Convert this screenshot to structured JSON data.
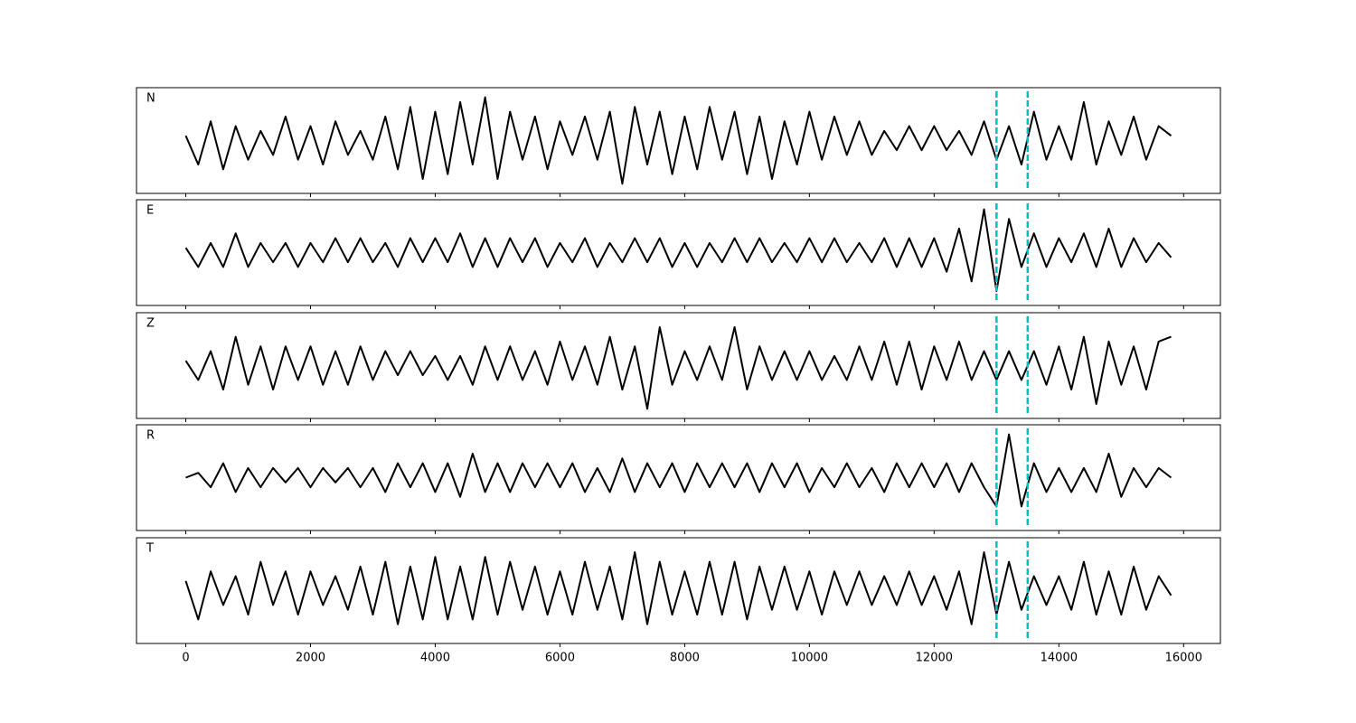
{
  "chart_data": [
    {
      "type": "line",
      "title": "N",
      "color": "#000000",
      "vline_color": "#00bfbf",
      "vlines": [
        13000,
        13500
      ],
      "xlim": [
        -790,
        16590
      ],
      "ylim": [
        -1.1,
        1.1
      ],
      "x": [
        0,
        200,
        400,
        600,
        800,
        1000,
        1200,
        1400,
        1600,
        1800,
        2000,
        2200,
        2400,
        2600,
        2800,
        3000,
        3200,
        3400,
        3600,
        3800,
        4000,
        4200,
        4400,
        4600,
        4800,
        5000,
        5200,
        5400,
        5600,
        5800,
        6000,
        6200,
        6400,
        6600,
        6800,
        7000,
        7200,
        7400,
        7600,
        7800,
        8000,
        8200,
        8400,
        8600,
        8800,
        9000,
        9200,
        9400,
        9600,
        9800,
        10000,
        10200,
        10400,
        10600,
        10800,
        11000,
        11200,
        11400,
        11600,
        11800,
        12000,
        12200,
        12400,
        12600,
        12800,
        13000,
        13200,
        13400,
        13600,
        13800,
        14000,
        14200,
        14400,
        14600,
        14800,
        15000,
        15200,
        15400,
        15600,
        15800
      ],
      "values": [
        0.1,
        -0.5,
        0.4,
        -0.6,
        0.3,
        -0.4,
        0.2,
        -0.3,
        0.5,
        -0.4,
        0.3,
        -0.5,
        0.4,
        -0.3,
        0.2,
        -0.4,
        0.5,
        -0.6,
        0.7,
        -0.8,
        0.6,
        -0.7,
        0.8,
        -0.5,
        0.9,
        -0.8,
        0.6,
        -0.4,
        0.5,
        -0.6,
        0.4,
        -0.3,
        0.5,
        -0.4,
        0.6,
        -0.9,
        0.7,
        -0.5,
        0.6,
        -0.7,
        0.5,
        -0.6,
        0.7,
        -0.4,
        0.6,
        -0.7,
        0.5,
        -0.8,
        0.4,
        -0.5,
        0.6,
        -0.4,
        0.5,
        -0.3,
        0.4,
        -0.3,
        0.2,
        -0.2,
        0.3,
        -0.2,
        0.3,
        -0.2,
        0.2,
        -0.3,
        0.4,
        -0.4,
        0.3,
        -0.5,
        0.6,
        -0.4,
        0.3,
        -0.4,
        0.8,
        -0.5,
        0.4,
        -0.3,
        0.5,
        -0.4,
        0.3,
        0.1
      ]
    },
    {
      "type": "line",
      "title": "E",
      "color": "#000000",
      "vline_color": "#00bfbf",
      "vlines": [
        13000,
        13500
      ],
      "xlim": [
        -790,
        16590
      ],
      "ylim": [
        -1.1,
        1.1
      ],
      "x": [
        0,
        200,
        400,
        600,
        800,
        1000,
        1200,
        1400,
        1600,
        1800,
        2000,
        2200,
        2400,
        2600,
        2800,
        3000,
        3200,
        3400,
        3600,
        3800,
        4000,
        4200,
        4400,
        4600,
        4800,
        5000,
        5200,
        5400,
        5600,
        5800,
        6000,
        6200,
        6400,
        6600,
        6800,
        7000,
        7200,
        7400,
        7600,
        7800,
        8000,
        8200,
        8400,
        8600,
        8800,
        9000,
        9200,
        9400,
        9600,
        9800,
        10000,
        10200,
        10400,
        10600,
        10800,
        11000,
        11200,
        11400,
        11600,
        11800,
        12000,
        12200,
        12400,
        12600,
        12800,
        13000,
        13200,
        13400,
        13600,
        13800,
        14000,
        14200,
        14400,
        14600,
        14800,
        15000,
        15200,
        15400,
        15600,
        15800
      ],
      "values": [
        0.1,
        -0.3,
        0.2,
        -0.3,
        0.4,
        -0.3,
        0.2,
        -0.2,
        0.2,
        -0.3,
        0.2,
        -0.2,
        0.3,
        -0.2,
        0.3,
        -0.2,
        0.2,
        -0.3,
        0.3,
        -0.2,
        0.3,
        -0.2,
        0.4,
        -0.3,
        0.3,
        -0.3,
        0.3,
        -0.2,
        0.3,
        -0.3,
        0.2,
        -0.2,
        0.3,
        -0.3,
        0.2,
        -0.2,
        0.3,
        -0.2,
        0.3,
        -0.3,
        0.2,
        -0.3,
        0.2,
        -0.2,
        0.3,
        -0.2,
        0.3,
        -0.2,
        0.2,
        -0.2,
        0.3,
        -0.2,
        0.3,
        -0.2,
        0.2,
        -0.2,
        0.3,
        -0.3,
        0.3,
        -0.3,
        0.3,
        -0.4,
        0.5,
        -0.6,
        0.9,
        -0.8,
        0.7,
        -0.3,
        0.4,
        -0.3,
        0.3,
        -0.2,
        0.4,
        -0.3,
        0.5,
        -0.3,
        0.3,
        -0.2,
        0.2,
        -0.1
      ]
    },
    {
      "type": "line",
      "title": "Z",
      "color": "#000000",
      "vline_color": "#00bfbf",
      "vlines": [
        13000,
        13500
      ],
      "xlim": [
        -790,
        16590
      ],
      "ylim": [
        -1.1,
        1.1
      ],
      "x": [
        0,
        200,
        400,
        600,
        800,
        1000,
        1200,
        1400,
        1600,
        1800,
        2000,
        2200,
        2400,
        2600,
        2800,
        3000,
        3200,
        3400,
        3600,
        3800,
        4000,
        4200,
        4400,
        4600,
        4800,
        5000,
        5200,
        5400,
        5600,
        5800,
        6000,
        6200,
        6400,
        6600,
        6800,
        7000,
        7200,
        7400,
        7600,
        7800,
        8000,
        8200,
        8400,
        8600,
        8800,
        9000,
        9200,
        9400,
        9600,
        9800,
        10000,
        10200,
        10400,
        10600,
        10800,
        11000,
        11200,
        11400,
        11600,
        11800,
        12000,
        12200,
        12400,
        12600,
        12800,
        13000,
        13200,
        13400,
        13600,
        13800,
        14000,
        14200,
        14400,
        14600,
        14800,
        15000,
        15200,
        15400,
        15600,
        15800
      ],
      "values": [
        0.1,
        -0.3,
        0.3,
        -0.5,
        0.6,
        -0.4,
        0.4,
        -0.5,
        0.4,
        -0.3,
        0.4,
        -0.4,
        0.3,
        -0.4,
        0.4,
        -0.3,
        0.3,
        -0.2,
        0.3,
        -0.2,
        0.2,
        -0.3,
        0.2,
        -0.4,
        0.4,
        -0.3,
        0.4,
        -0.3,
        0.3,
        -0.4,
        0.5,
        -0.3,
        0.4,
        -0.4,
        0.6,
        -0.5,
        0.4,
        -0.9,
        0.8,
        -0.4,
        0.3,
        -0.3,
        0.4,
        -0.3,
        0.8,
        -0.5,
        0.4,
        -0.3,
        0.3,
        -0.3,
        0.3,
        -0.3,
        0.2,
        -0.3,
        0.4,
        -0.3,
        0.5,
        -0.4,
        0.5,
        -0.5,
        0.4,
        -0.3,
        0.5,
        -0.3,
        0.3,
        -0.3,
        0.3,
        -0.3,
        0.3,
        -0.4,
        0.4,
        -0.5,
        0.6,
        -0.8,
        0.5,
        -0.4,
        0.4,
        -0.5,
        0.5,
        0.6
      ]
    },
    {
      "type": "line",
      "title": "R",
      "color": "#000000",
      "vline_color": "#00bfbf",
      "vlines": [
        13000,
        13500
      ],
      "xlim": [
        -790,
        16590
      ],
      "ylim": [
        -1.1,
        1.1
      ],
      "x": [
        0,
        200,
        400,
        600,
        800,
        1000,
        1200,
        1400,
        1600,
        1800,
        2000,
        2200,
        2400,
        2600,
        2800,
        3000,
        3200,
        3400,
        3600,
        3800,
        4000,
        4200,
        4400,
        4600,
        4800,
        5000,
        5200,
        5400,
        5600,
        5800,
        6000,
        6200,
        6400,
        6600,
        6800,
        7000,
        7200,
        7400,
        7600,
        7800,
        8000,
        8200,
        8400,
        8600,
        8800,
        9000,
        9200,
        9400,
        9600,
        9800,
        10000,
        10200,
        10400,
        10600,
        10800,
        11000,
        11200,
        11400,
        11600,
        11800,
        12000,
        12200,
        12400,
        12600,
        12800,
        13000,
        13200,
        13400,
        13600,
        13800,
        14000,
        14200,
        14400,
        14600,
        14800,
        15000,
        15200,
        15400,
        15600,
        15800
      ],
      "values": [
        0.0,
        0.1,
        -0.2,
        0.3,
        -0.3,
        0.2,
        -0.2,
        0.2,
        -0.1,
        0.2,
        -0.2,
        0.2,
        -0.1,
        0.2,
        -0.2,
        0.2,
        -0.3,
        0.3,
        -0.2,
        0.3,
        -0.3,
        0.3,
        -0.4,
        0.5,
        -0.3,
        0.3,
        -0.3,
        0.3,
        -0.2,
        0.3,
        -0.2,
        0.3,
        -0.3,
        0.2,
        -0.3,
        0.4,
        -0.3,
        0.3,
        -0.2,
        0.3,
        -0.3,
        0.3,
        -0.2,
        0.3,
        -0.2,
        0.3,
        -0.3,
        0.3,
        -0.2,
        0.3,
        -0.3,
        0.2,
        -0.2,
        0.3,
        -0.2,
        0.2,
        -0.3,
        0.3,
        -0.2,
        0.3,
        -0.2,
        0.3,
        -0.3,
        0.3,
        -0.2,
        -0.6,
        0.9,
        -0.6,
        0.3,
        -0.3,
        0.2,
        -0.3,
        0.2,
        -0.3,
        0.5,
        -0.4,
        0.2,
        -0.2,
        0.2,
        0.0
      ]
    },
    {
      "type": "line",
      "title": "T",
      "color": "#000000",
      "vline_color": "#00bfbf",
      "vlines": [
        13000,
        13500
      ],
      "xlim": [
        -790,
        16590
      ],
      "ylim": [
        -1.1,
        1.1
      ],
      "xticks": [
        0,
        2000,
        4000,
        6000,
        8000,
        10000,
        12000,
        14000,
        16000
      ],
      "x": [
        0,
        200,
        400,
        600,
        800,
        1000,
        1200,
        1400,
        1600,
        1800,
        2000,
        2200,
        2400,
        2600,
        2800,
        3000,
        3200,
        3400,
        3600,
        3800,
        4000,
        4200,
        4400,
        4600,
        4800,
        5000,
        5200,
        5400,
        5600,
        5800,
        6000,
        6200,
        6400,
        6600,
        6800,
        7000,
        7200,
        7400,
        7600,
        7800,
        8000,
        8200,
        8400,
        8600,
        8800,
        9000,
        9200,
        9400,
        9600,
        9800,
        10000,
        10200,
        10400,
        10600,
        10800,
        11000,
        11200,
        11400,
        11600,
        11800,
        12000,
        12200,
        12400,
        12600,
        12800,
        13000,
        13200,
        13400,
        13600,
        13800,
        14000,
        14200,
        14400,
        14600,
        14800,
        15000,
        15200,
        15400,
        15600,
        15800
      ],
      "values": [
        0.2,
        -0.6,
        0.4,
        -0.3,
        0.3,
        -0.5,
        0.6,
        -0.3,
        0.4,
        -0.5,
        0.4,
        -0.3,
        0.3,
        -0.4,
        0.5,
        -0.5,
        0.6,
        -0.7,
        0.5,
        -0.6,
        0.7,
        -0.6,
        0.5,
        -0.6,
        0.7,
        -0.5,
        0.6,
        -0.4,
        0.5,
        -0.5,
        0.4,
        -0.5,
        0.6,
        -0.4,
        0.5,
        -0.6,
        0.8,
        -0.7,
        0.6,
        -0.5,
        0.4,
        -0.5,
        0.6,
        -0.5,
        0.6,
        -0.6,
        0.5,
        -0.4,
        0.5,
        -0.4,
        0.4,
        -0.5,
        0.4,
        -0.3,
        0.4,
        -0.3,
        0.3,
        -0.3,
        0.4,
        -0.3,
        0.3,
        -0.4,
        0.4,
        -0.7,
        0.8,
        -0.5,
        0.6,
        -0.4,
        0.3,
        -0.3,
        0.3,
        -0.4,
        0.6,
        -0.5,
        0.4,
        -0.5,
        0.5,
        -0.4,
        0.3,
        -0.1
      ]
    }
  ]
}
